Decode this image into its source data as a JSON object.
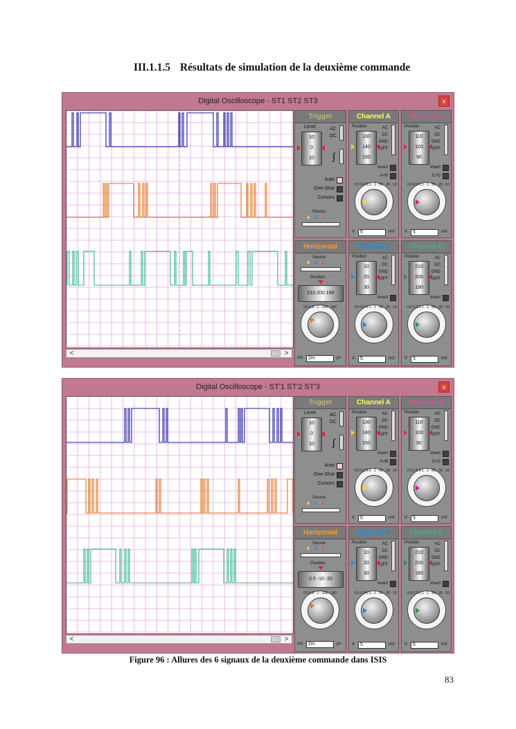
{
  "page": {
    "heading_number": "III.1.1.5",
    "heading_text": "Résultats de simulation de la deuxième commande",
    "caption": "Figure 96 : Allures des 6 signaux de la deuxième commande dans ISIS",
    "page_number": "83"
  },
  "colors": {
    "window_frame": "#c1798f",
    "grid": "#e8a6e6",
    "trace_a": "#1b1b9f",
    "trace_b": "#e2721c",
    "trace_c": "#2fb58a",
    "trigger_title": "#c4b27a",
    "channel_a_title": "#ffff55",
    "channel_b_title": "#1e8ed6",
    "channel_c_title": "#ff3b9a",
    "channel_d_title": "#22c27a",
    "horizontal_title": "#ff9a2e"
  },
  "scopes": [
    {
      "title": "Digital Oscilloscope - ST1   ST2   ST3",
      "close_label": "x",
      "traces": [
        {
          "base_y": 52,
          "high_y": 3,
          "stroke": "#1b1b9f",
          "pulses": [
            [
              8,
              10
            ],
            [
              15,
              17
            ],
            [
              20,
              57
            ],
            [
              62,
              64
            ],
            [
              162,
              164
            ],
            [
              167,
              169
            ],
            [
              174,
              212
            ],
            [
              217,
              219
            ],
            [
              227,
              229
            ],
            [
              232,
              234
            ],
            [
              237,
              239
            ]
          ]
        },
        {
          "base_y": 154,
          "high_y": 105,
          "stroke": "#e2721c",
          "pulses": [
            [
              53,
              55
            ],
            [
              57,
              59
            ],
            [
              61,
              97
            ],
            [
              104,
              106
            ],
            [
              110,
              112
            ],
            [
              115,
              117
            ],
            [
              208,
              210
            ],
            [
              213,
              215
            ],
            [
              218,
              252
            ],
            [
              260,
              262
            ],
            [
              266,
              268
            ],
            [
              271,
              273
            ],
            [
              287,
              289
            ]
          ]
        },
        {
          "base_y": 252,
          "high_y": 203,
          "stroke": "#2fb58a",
          "pulses": [
            [
              1,
              4
            ],
            [
              9,
              11
            ],
            [
              14,
              17
            ],
            [
              25,
              40
            ],
            [
              91,
              93
            ],
            [
              108,
              110
            ],
            [
              113,
              150
            ],
            [
              156,
              158
            ],
            [
              169,
              171
            ],
            [
              173,
              182
            ],
            [
              205,
              207
            ],
            [
              245,
              248
            ],
            [
              262,
              265
            ],
            [
              268,
              305
            ],
            [
              316,
              318
            ]
          ]
        }
      ],
      "trigger": {
        "title": "Trigger",
        "level_label": "Level",
        "drum": [
          "10",
          "0",
          "10"
        ],
        "ac": "AC",
        "dc": "DC",
        "options": [
          "Auto",
          "One-Shot",
          "Cursors"
        ],
        "source_label": "Source",
        "source_letters": [
          "A",
          "B",
          "C",
          "D"
        ]
      },
      "channels": [
        {
          "title": "Channel A",
          "position_label": "Position",
          "drum": [
            "130",
            "140",
            "150"
          ],
          "couplings": [
            "AC",
            "DC",
            "GND",
            "OFF"
          ],
          "extra": [
            "Invert",
            "A+B"
          ],
          "dial_ticks": "0.5 0.2 0.1 · 1 · 50 · 20 · 10",
          "unit_left": "V",
          "field_value": "5",
          "unit_right": "mV"
        },
        {
          "title": "Channel C",
          "position_label": "Position",
          "drum": [
            "110",
            "100",
            "90"
          ],
          "couplings": [
            "AC",
            "DC",
            "GND",
            "OFF"
          ],
          "extra": [
            "Invert",
            "C+D"
          ],
          "dial_ticks": "0.5 0.2 0.1 · 1 · 50 · 20 · 10",
          "unit_left": "V",
          "field_value": "5",
          "unit_right": "mV"
        },
        {
          "title": "Channel B",
          "position_label": "Position",
          "drum": [
            "10",
            "20",
            "30"
          ],
          "couplings": [
            "AC",
            "DC",
            "GND",
            "OFF"
          ],
          "extra": [
            "Invert"
          ],
          "dial_ticks": "0.5 0.2 0.1 · 1 · 50 · 20 · 10",
          "unit_left": "V",
          "field_value": "5",
          "unit_right": "mV"
        },
        {
          "title": "Channel D",
          "position_label": "Position",
          "drum": [
            "210",
            "200",
            "190"
          ],
          "couplings": [
            "AC",
            "DC",
            "GND",
            "OFF"
          ],
          "extra": [
            "Invert"
          ],
          "dial_ticks": "0.5 0.2 0.1 · 1 · 50 · 20 · 10",
          "unit_left": "V",
          "field_value": "5",
          "unit_right": "mV"
        }
      ],
      "horizontal": {
        "title": "Horizontal",
        "source_label": "Source",
        "source_letters": [
          "A",
          "B",
          "C",
          "D"
        ],
        "position_label": "Position",
        "ruler": "210  200  190",
        "dial_ticks": "0.5 0.2 · 1 · 200 · 100",
        "unit_left": "ms",
        "field_value": "2m",
        "unit_right": "µs"
      }
    },
    {
      "title": "Digital Oscilloscope - ST'1   ST'2   ST'3",
      "close_label": "x",
      "traces": [
        {
          "base_y": 66,
          "high_y": 17,
          "stroke": "#1b1b9f",
          "pulses": [
            [
              84,
              86
            ],
            [
              89,
              91
            ],
            [
              94,
              134
            ],
            [
              139,
              141
            ],
            [
              144,
              146
            ],
            [
              230,
              232
            ],
            [
              248,
              250
            ],
            [
              252,
              254
            ],
            [
              257,
              293
            ],
            [
              298,
              300
            ],
            [
              304,
              306
            ],
            [
              309,
              311
            ]
          ]
        },
        {
          "base_y": 168,
          "high_y": 119,
          "stroke": "#e2721c",
          "pulses": [
            [
              1,
              28
            ],
            [
              32,
              34
            ],
            [
              37,
              39
            ],
            [
              43,
              45
            ],
            [
              129,
              131
            ],
            [
              134,
              136
            ],
            [
              194,
              196
            ],
            [
              198,
              200
            ],
            [
              203,
              205
            ],
            [
              248,
              250
            ],
            [
              290,
              292
            ],
            [
              296,
              298
            ],
            [
              301,
              303
            ],
            [
              319,
              327
            ]
          ]
        },
        {
          "base_y": 269,
          "high_y": 220,
          "stroke": "#2fb58a",
          "pulses": [
            [
              25,
              27
            ],
            [
              30,
              32
            ],
            [
              35,
              71
            ],
            [
              77,
              79
            ],
            [
              84,
              86
            ],
            [
              89,
              91
            ],
            [
              181,
              183
            ],
            [
              185,
              187
            ],
            [
              191,
              227
            ],
            [
              232,
              234
            ],
            [
              237,
              239
            ],
            [
              242,
              244
            ]
          ]
        }
      ],
      "trigger": {
        "title": "Trigger",
        "level_label": "Level",
        "drum": [
          "10",
          "0",
          "10"
        ],
        "ac": "AC",
        "dc": "DC",
        "options": [
          "Auto",
          "One-Shot",
          "Cursors"
        ],
        "source_label": "Source",
        "source_letters": [
          "A",
          "B",
          "C",
          "D"
        ]
      },
      "channels": [
        {
          "title": "Channel A",
          "position_label": "Position",
          "drum": [
            "130",
            "140",
            "150"
          ],
          "couplings": [
            "AC",
            "DC",
            "GND",
            "OFF"
          ],
          "extra": [
            "Invert",
            "A+B"
          ],
          "dial_ticks": "0.5 0.2 0.1 · 1 · 50 · 20 · 10",
          "unit_left": "V",
          "field_value": "5",
          "unit_right": "mV"
        },
        {
          "title": "Channel C",
          "position_label": "Position",
          "drum": [
            "110",
            "100",
            "90"
          ],
          "couplings": [
            "AC",
            "DC",
            "GND",
            "OFF"
          ],
          "extra": [
            "Invert",
            "C+D"
          ],
          "dial_ticks": "0.5 0.2 0.1 · 1 · 50 · 20 · 10",
          "unit_left": "V",
          "field_value": "5",
          "unit_right": "mV"
        },
        {
          "title": "Channel B",
          "position_label": "Position",
          "drum": [
            "10",
            "20",
            "30"
          ],
          "couplings": [
            "AC",
            "DC",
            "GND",
            "OFF"
          ],
          "extra": [
            "Invert"
          ],
          "dial_ticks": "0.5 0.2 0.1 · 1 · 50 · 20 · 10",
          "unit_left": "V",
          "field_value": "5",
          "unit_right": "mV"
        },
        {
          "title": "Channel D",
          "position_label": "Position",
          "drum": [
            "210",
            "200",
            "190"
          ],
          "couplings": [
            "AC",
            "DC",
            "GND",
            "OFF"
          ],
          "extra": [
            "Invert"
          ],
          "dial_ticks": "0.5 0.2 0.1 · 1 · 50 · 20 · 10",
          "unit_left": "V",
          "field_value": "5",
          "unit_right": "mV"
        }
      ],
      "horizontal": {
        "title": "Horizontal",
        "source_label": "Source",
        "source_letters": [
          "A",
          "B",
          "C",
          "D"
        ],
        "position_label": "Position",
        "ruler": "0  0  -10  -20",
        "dial_ticks": "0.5 0.2 · 1 · 200 · 100",
        "unit_left": "ms",
        "field_value": "2m",
        "unit_right": "µs"
      }
    }
  ]
}
